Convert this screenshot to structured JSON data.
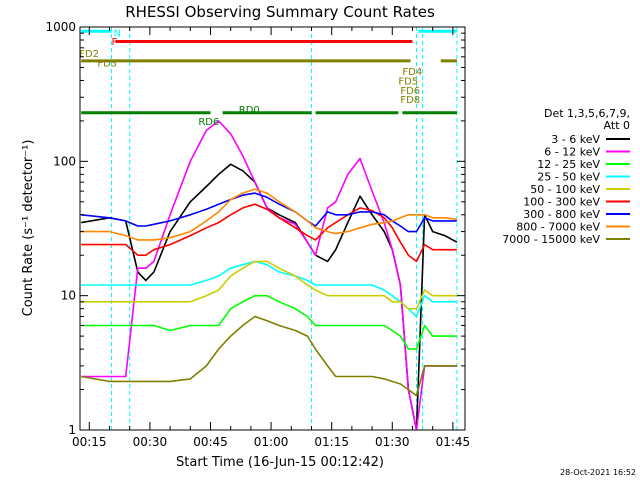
{
  "chart_data": {
    "type": "line",
    "title": "RHESSI Observing Summary Count Rates",
    "xlabel": "Start Time (16-Jun-15 00:12:42)",
    "ylabel": "Count Rate (s⁻¹ detector⁻¹)",
    "ylog": true,
    "ylim": [
      1,
      1000
    ],
    "xlim_minutes": [
      12.7,
      108.0
    ],
    "x_tick_minutes": [
      15,
      30,
      45,
      60,
      75,
      90,
      105
    ],
    "x_tick_labels": [
      "00:15",
      "00:30",
      "00:45",
      "01:00",
      "01:15",
      "01:30",
      "01:45"
    ],
    "y_ticks": [
      1,
      10,
      100,
      1000
    ],
    "y_tick_labels": [
      "1",
      "10",
      "100",
      "1000"
    ],
    "legend_title": [
      "Det 1,3,5,6,7,9,",
      "Att 0"
    ],
    "footer": "28-Oct-2021 16:52",
    "series": [
      {
        "name": "3 - 6 keV",
        "color": "#000000",
        "x": [
          13,
          20,
          24,
          27,
          29,
          31,
          35,
          40,
          44,
          47,
          50,
          53,
          56,
          59,
          62,
          66,
          69,
          71,
          74,
          76,
          79,
          82,
          85,
          88,
          90,
          92,
          94,
          96,
          98,
          100,
          103,
          106
        ],
        "values": [
          35,
          38,
          36,
          15,
          13,
          15,
          30,
          50,
          65,
          80,
          95,
          85,
          70,
          45,
          40,
          35,
          25,
          20,
          18,
          22,
          35,
          55,
          40,
          30,
          22,
          12,
          2,
          1,
          40,
          30,
          28,
          25
        ]
      },
      {
        "name": "6 - 12 keV",
        "color": "#ff00ff",
        "x": [
          13,
          20,
          24,
          27,
          29,
          31,
          35,
          40,
          44,
          47,
          50,
          53,
          56,
          59,
          62,
          66,
          69,
          71,
          74,
          76,
          79,
          82,
          85,
          88,
          90,
          92,
          94,
          96,
          98,
          100,
          103,
          106
        ],
        "values": [
          2.5,
          2.5,
          2.5,
          16,
          16,
          18,
          40,
          100,
          170,
          200,
          160,
          110,
          70,
          45,
          38,
          34,
          25,
          20,
          45,
          50,
          80,
          105,
          60,
          35,
          22,
          12,
          2,
          1,
          3,
          3,
          3,
          3
        ]
      },
      {
        "name": "12 - 25 keV",
        "color": "#00ff00",
        "x": [
          13,
          20,
          24,
          27,
          29,
          31,
          35,
          40,
          44,
          47,
          50,
          53,
          56,
          59,
          62,
          66,
          69,
          71,
          74,
          76,
          79,
          82,
          85,
          88,
          90,
          92,
          94,
          96,
          98,
          100,
          103,
          106
        ],
        "values": [
          6,
          6,
          6,
          6,
          6,
          6,
          5.5,
          6,
          6,
          6,
          8,
          9,
          10,
          10,
          9,
          8,
          7,
          6,
          6,
          6,
          6,
          6,
          6,
          6,
          5.5,
          5,
          4,
          4,
          6,
          5,
          5,
          5
        ]
      },
      {
        "name": "25 - 50 keV",
        "color": "#00ffff",
        "x": [
          13,
          20,
          24,
          27,
          29,
          31,
          35,
          40,
          44,
          47,
          50,
          53,
          56,
          59,
          62,
          66,
          69,
          71,
          74,
          76,
          79,
          82,
          85,
          88,
          90,
          92,
          94,
          96,
          98,
          100,
          103,
          106
        ],
        "values": [
          12,
          12,
          12,
          12,
          12,
          12,
          12,
          12,
          13,
          14,
          16,
          17,
          18,
          17,
          15,
          14,
          13,
          12,
          12,
          12,
          12,
          12,
          12,
          11,
          10,
          9,
          8,
          7,
          10,
          9,
          9,
          9
        ]
      },
      {
        "name": "50 - 100 keV",
        "color": "#cccc00",
        "x": [
          13,
          20,
          24,
          27,
          29,
          31,
          35,
          40,
          44,
          47,
          50,
          53,
          56,
          59,
          62,
          66,
          69,
          71,
          74,
          76,
          79,
          82,
          85,
          88,
          90,
          92,
          94,
          96,
          98,
          100,
          103,
          106
        ],
        "values": [
          9,
          9,
          9,
          9,
          9,
          9,
          9,
          9,
          10,
          11,
          14,
          16,
          18,
          18,
          16,
          14,
          12,
          11,
          10,
          10,
          10,
          10,
          10,
          10,
          9,
          9,
          8,
          8,
          11,
          10,
          10,
          10
        ]
      },
      {
        "name": "100 - 300 keV",
        "color": "#ff0000",
        "x": [
          13,
          20,
          24,
          27,
          29,
          31,
          35,
          40,
          44,
          47,
          50,
          53,
          56,
          59,
          62,
          66,
          69,
          71,
          74,
          76,
          79,
          82,
          85,
          88,
          90,
          92,
          94,
          96,
          98,
          100,
          103,
          106
        ],
        "values": [
          24,
          24,
          24,
          20,
          20,
          22,
          24,
          28,
          32,
          35,
          40,
          45,
          48,
          44,
          38,
          32,
          28,
          26,
          32,
          35,
          40,
          45,
          43,
          38,
          32,
          25,
          20,
          18,
          24,
          22,
          22,
          22
        ]
      },
      {
        "name": "300 - 800 keV",
        "color": "#0000ff",
        "x": [
          13,
          20,
          24,
          27,
          29,
          31,
          35,
          40,
          44,
          47,
          50,
          53,
          56,
          59,
          62,
          66,
          69,
          71,
          74,
          76,
          79,
          82,
          85,
          88,
          90,
          92,
          94,
          96,
          98,
          100,
          103,
          106
        ],
        "values": [
          40,
          38,
          36,
          33,
          33,
          34,
          36,
          40,
          44,
          48,
          52,
          56,
          58,
          54,
          48,
          42,
          36,
          33,
          42,
          40,
          40,
          42,
          42,
          40,
          36,
          33,
          30,
          30,
          38,
          36,
          36,
          36
        ]
      },
      {
        "name": "800 - 7000 keV",
        "color": "#ff8800",
        "x": [
          13,
          20,
          24,
          27,
          29,
          31,
          35,
          40,
          44,
          47,
          50,
          53,
          56,
          59,
          62,
          66,
          69,
          71,
          74,
          76,
          79,
          82,
          85,
          88,
          90,
          92,
          94,
          96,
          98,
          100,
          103,
          106
        ],
        "values": [
          30,
          30,
          28,
          26,
          26,
          26,
          27,
          30,
          36,
          42,
          52,
          58,
          62,
          58,
          50,
          42,
          36,
          32,
          30,
          29,
          30,
          32,
          34,
          35,
          36,
          38,
          40,
          40,
          40,
          38,
          38,
          37
        ]
      },
      {
        "name": "7000 - 15000 keV",
        "color": "#808000",
        "x": [
          13,
          20,
          24,
          27,
          29,
          31,
          35,
          40,
          44,
          47,
          50,
          53,
          56,
          59,
          62,
          66,
          69,
          71,
          74,
          76,
          79,
          82,
          85,
          88,
          90,
          92,
          94,
          96,
          98,
          100,
          103,
          106
        ],
        "values": [
          2.5,
          2.3,
          2.3,
          2.3,
          2.3,
          2.3,
          2.3,
          2.4,
          3,
          4,
          5,
          6,
          7,
          6.5,
          6,
          5.5,
          5,
          4,
          3,
          2.5,
          2.5,
          2.5,
          2.5,
          2.4,
          2.3,
          2.2,
          2,
          1.8,
          3,
          3,
          3,
          3
        ]
      }
    ],
    "annotations": {
      "labels": [
        {
          "text": "N",
          "color": "#00ffff",
          "x": 21,
          "y": 910
        },
        {
          "text": "F",
          "color": "#ff0000",
          "x": 20.5,
          "y": 790
        },
        {
          "text": "FD2",
          "color": "#808000",
          "x": 12.5,
          "y": 640
        },
        {
          "text": "FD3",
          "color": "#808000",
          "x": 17,
          "y": 545
        },
        {
          "text": "FD4",
          "color": "#808000",
          "x": 92.5,
          "y": 470
        },
        {
          "text": "FD5",
          "color": "#808000",
          "x": 91.5,
          "y": 400
        },
        {
          "text": "FD6",
          "color": "#808000",
          "x": 92,
          "y": 340
        },
        {
          "text": "FD8",
          "color": "#808000",
          "x": 92,
          "y": 290
        },
        {
          "text": "RD0",
          "color": "#008000",
          "x": 52,
          "y": 245
        },
        {
          "text": "RD6",
          "color": "#008000",
          "x": 42,
          "y": 200
        }
      ],
      "bars": [
        {
          "color": "#00ffff",
          "y": 930,
          "x": [
            [
              13,
              20.5
            ],
            [
              96.5,
              106
            ]
          ]
        },
        {
          "color": "#ff0000",
          "y": 780,
          "x": [
            [
              21.5,
              95
            ]
          ]
        },
        {
          "color": "#808000",
          "y": 560,
          "x": [
            [
              13,
              94.5
            ],
            [
              102,
              106
            ]
          ]
        },
        {
          "color": "#008000",
          "y": 230,
          "x": [
            [
              13,
              45
            ],
            [
              48,
              70
            ],
            [
              71,
              91.5
            ],
            [
              92.5,
              106
            ]
          ]
        }
      ],
      "vlines_cyan_minutes": [
        20.5,
        25,
        70,
        96,
        97.5,
        106
      ]
    }
  }
}
